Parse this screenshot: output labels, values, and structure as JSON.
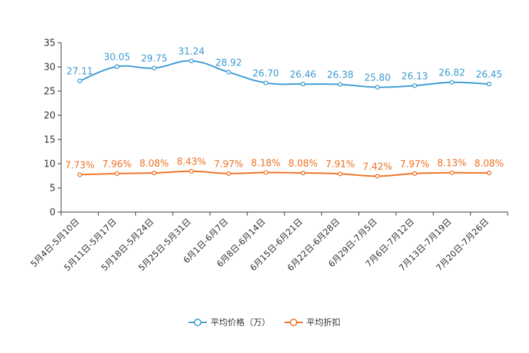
{
  "colors": {
    "price": "#3a9bd2",
    "discount": "#ee7021",
    "axis": "#333333"
  },
  "chart_data": {
    "type": "line",
    "categories": [
      "5月4日-5月10日",
      "5月11日-5月17日",
      "5月18日-5月24日",
      "5月25日-5月31日",
      "6月1日-6月7日",
      "6月8日-6月14日",
      "6月15日-6月21日",
      "6月22日-6月28日",
      "6月29日-7月5日",
      "7月6日-7月12日",
      "7月13日-7月19日",
      "7月20日-7月26日"
    ],
    "y_ticks": [
      "0",
      "5",
      "10",
      "15",
      "20",
      "25",
      "30",
      "35"
    ],
    "ylim": [
      0,
      35
    ],
    "series": [
      {
        "name": "平均价格（万）",
        "values": [
          27.11,
          30.05,
          29.75,
          31.24,
          28.92,
          26.7,
          26.46,
          26.38,
          25.8,
          26.13,
          26.82,
          26.45
        ],
        "labels": [
          "27.11",
          "30.05",
          "29.75",
          "31.24",
          "28.92",
          "26.70",
          "26.46",
          "26.38",
          "25.80",
          "26.13",
          "26.82",
          "26.45"
        ]
      },
      {
        "name": "平均折扣",
        "values": [
          7.73,
          7.96,
          8.08,
          8.43,
          7.97,
          8.18,
          8.08,
          7.91,
          7.42,
          7.97,
          8.13,
          8.08
        ],
        "labels": [
          "7.73%",
          "7.96%",
          "8.08%",
          "8.43%",
          "7.97%",
          "8.18%",
          "8.08%",
          "7.91%",
          "7.42%",
          "7.97%",
          "8.13%",
          "8.08%"
        ]
      }
    ]
  },
  "legend": {
    "price_label": "平均价格（万）",
    "discount_label": "平均折扣"
  }
}
